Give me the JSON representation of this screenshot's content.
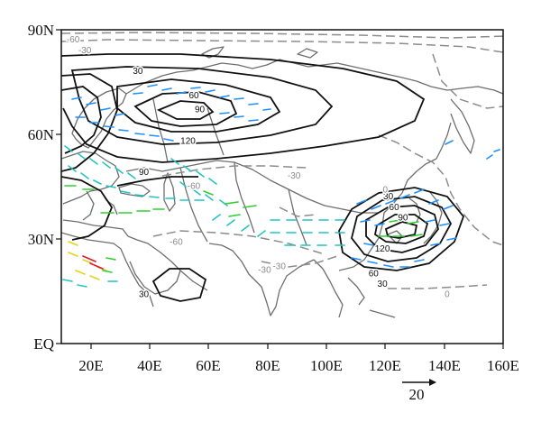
{
  "map": {
    "lat_ticks": [
      "90N",
      "60N",
      "30N",
      "EQ"
    ],
    "lon_ticks": [
      "20E",
      "40E",
      "60E",
      "80E",
      "100E",
      "120E",
      "140E",
      "160E"
    ],
    "extent": {
      "lon": [
        10,
        160
      ],
      "lat": [
        0,
        90
      ]
    },
    "reference_vector": {
      "label": "20",
      "value": 20
    },
    "colors": {
      "coast": "#6e6e6e",
      "positive_contour": "#000000",
      "negative_contour": "#8c8c8c",
      "vector_low": "#1e90ff",
      "vector_mid": "#32cd32",
      "vector_high": "#e8d21a",
      "vector_max": "#e0182f"
    },
    "positive_contours": [
      {
        "label": "30",
        "lon": 36,
        "lat": 78
      },
      {
        "label": "60",
        "lon": 55,
        "lat": 71
      },
      {
        "label": "90",
        "lon": 57,
        "lat": 67
      },
      {
        "label": "120",
        "lon": 53,
        "lat": 58
      },
      {
        "label": "90",
        "lon": 38,
        "lat": 49
      },
      {
        "label": "30",
        "lon": 121,
        "lat": 42
      },
      {
        "label": "60",
        "lon": 123,
        "lat": 39
      },
      {
        "label": "90",
        "lon": 126,
        "lat": 36
      },
      {
        "label": "120",
        "lon": 119,
        "lat": 27
      },
      {
        "label": "60",
        "lon": 116,
        "lat": 20
      },
      {
        "label": "30",
        "lon": 119,
        "lat": 17
      },
      {
        "label": "30",
        "lon": 38,
        "lat": 14
      }
    ],
    "negative_contours": [
      {
        "label": "-60",
        "lon": 14,
        "lat": 87
      },
      {
        "label": "-30",
        "lon": 18,
        "lat": 84
      },
      {
        "label": "-60",
        "lon": 55,
        "lat": 45
      },
      {
        "label": "-30",
        "lon": 89,
        "lat": 48
      },
      {
        "label": "-60",
        "lon": 49,
        "lat": 29
      },
      {
        "label": "-30",
        "lon": 79,
        "lat": 21
      },
      {
        "label": "-30",
        "lon": 84,
        "lat": 22
      },
      {
        "label": "0",
        "lon": 141,
        "lat": 14
      },
      {
        "label": "0",
        "lon": 120,
        "lat": 44
      }
    ]
  }
}
